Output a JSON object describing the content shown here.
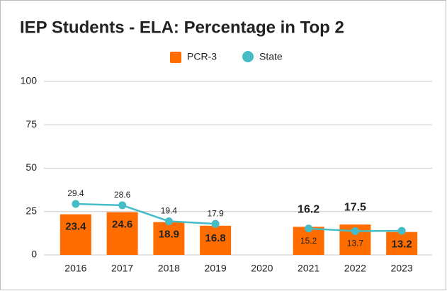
{
  "chart_data": {
    "type": "bar",
    "title": "IEP Students - ELA: Percentage in Top 2",
    "categories": [
      "2016",
      "2017",
      "2018",
      "2019",
      "2020",
      "2021",
      "2022",
      "2023"
    ],
    "series": [
      {
        "name": "PCR-3",
        "type": "bar",
        "color": "#ff6d01",
        "values": [
          23.4,
          24.6,
          18.9,
          16.8,
          null,
          16.2,
          17.5,
          13.2
        ]
      },
      {
        "name": "State",
        "type": "line",
        "color": "#46bdc6",
        "values": [
          29.4,
          28.6,
          19.4,
          17.9,
          null,
          15.2,
          13.7,
          13.9
        ],
        "value_labels": [
          "29.4",
          "28.6",
          "19.4",
          "17.9",
          null,
          "15.2",
          "13.7",
          null
        ]
      }
    ],
    "ylim": [
      0,
      100
    ],
    "yticks": [
      0,
      25,
      50,
      75,
      100
    ],
    "grid": true,
    "legend": "top"
  }
}
